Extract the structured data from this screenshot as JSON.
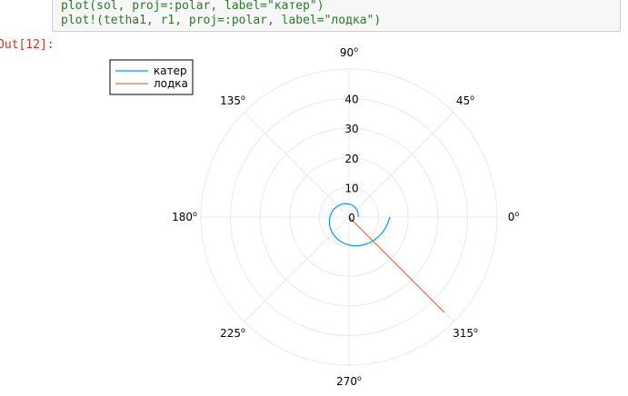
{
  "cell": {
    "code_lines": [
      "plot(sol, proj=:polar, label=\"катер\")",
      "plot!(tetha1, r1, proj=:polar, label=\"лодка\")"
    ],
    "out_prompt": "Out[12]:"
  },
  "chart_data": {
    "type": "line",
    "projection": "polar",
    "title": "",
    "angle_ticks": [
      {
        "deg": 0,
        "label": "0"
      },
      {
        "deg": 45,
        "label": "45"
      },
      {
        "deg": 90,
        "label": "90"
      },
      {
        "deg": 135,
        "label": "135"
      },
      {
        "deg": 180,
        "label": "180"
      },
      {
        "deg": 225,
        "label": "225"
      },
      {
        "deg": 270,
        "label": "270"
      },
      {
        "deg": 315,
        "label": "315"
      }
    ],
    "angle_tick_suffix": "o",
    "r_ticks": [
      0,
      10,
      20,
      30,
      40
    ],
    "rlim": [
      0,
      50
    ],
    "grid": true,
    "legend": {
      "placement": "top-left"
    },
    "series": [
      {
        "name": "катер",
        "color": "#009af9",
        "spiral": {
          "r0": 3.0,
          "theta0_deg": 0,
          "theta1_deg": 360,
          "k_per_rad": 0.2424
        }
      },
      {
        "name": "лодка",
        "color": "#e26f46",
        "points": [
          {
            "theta_deg": 315,
            "r": 0
          },
          {
            "theta_deg": 315,
            "r": 45.5
          }
        ]
      }
    ]
  }
}
